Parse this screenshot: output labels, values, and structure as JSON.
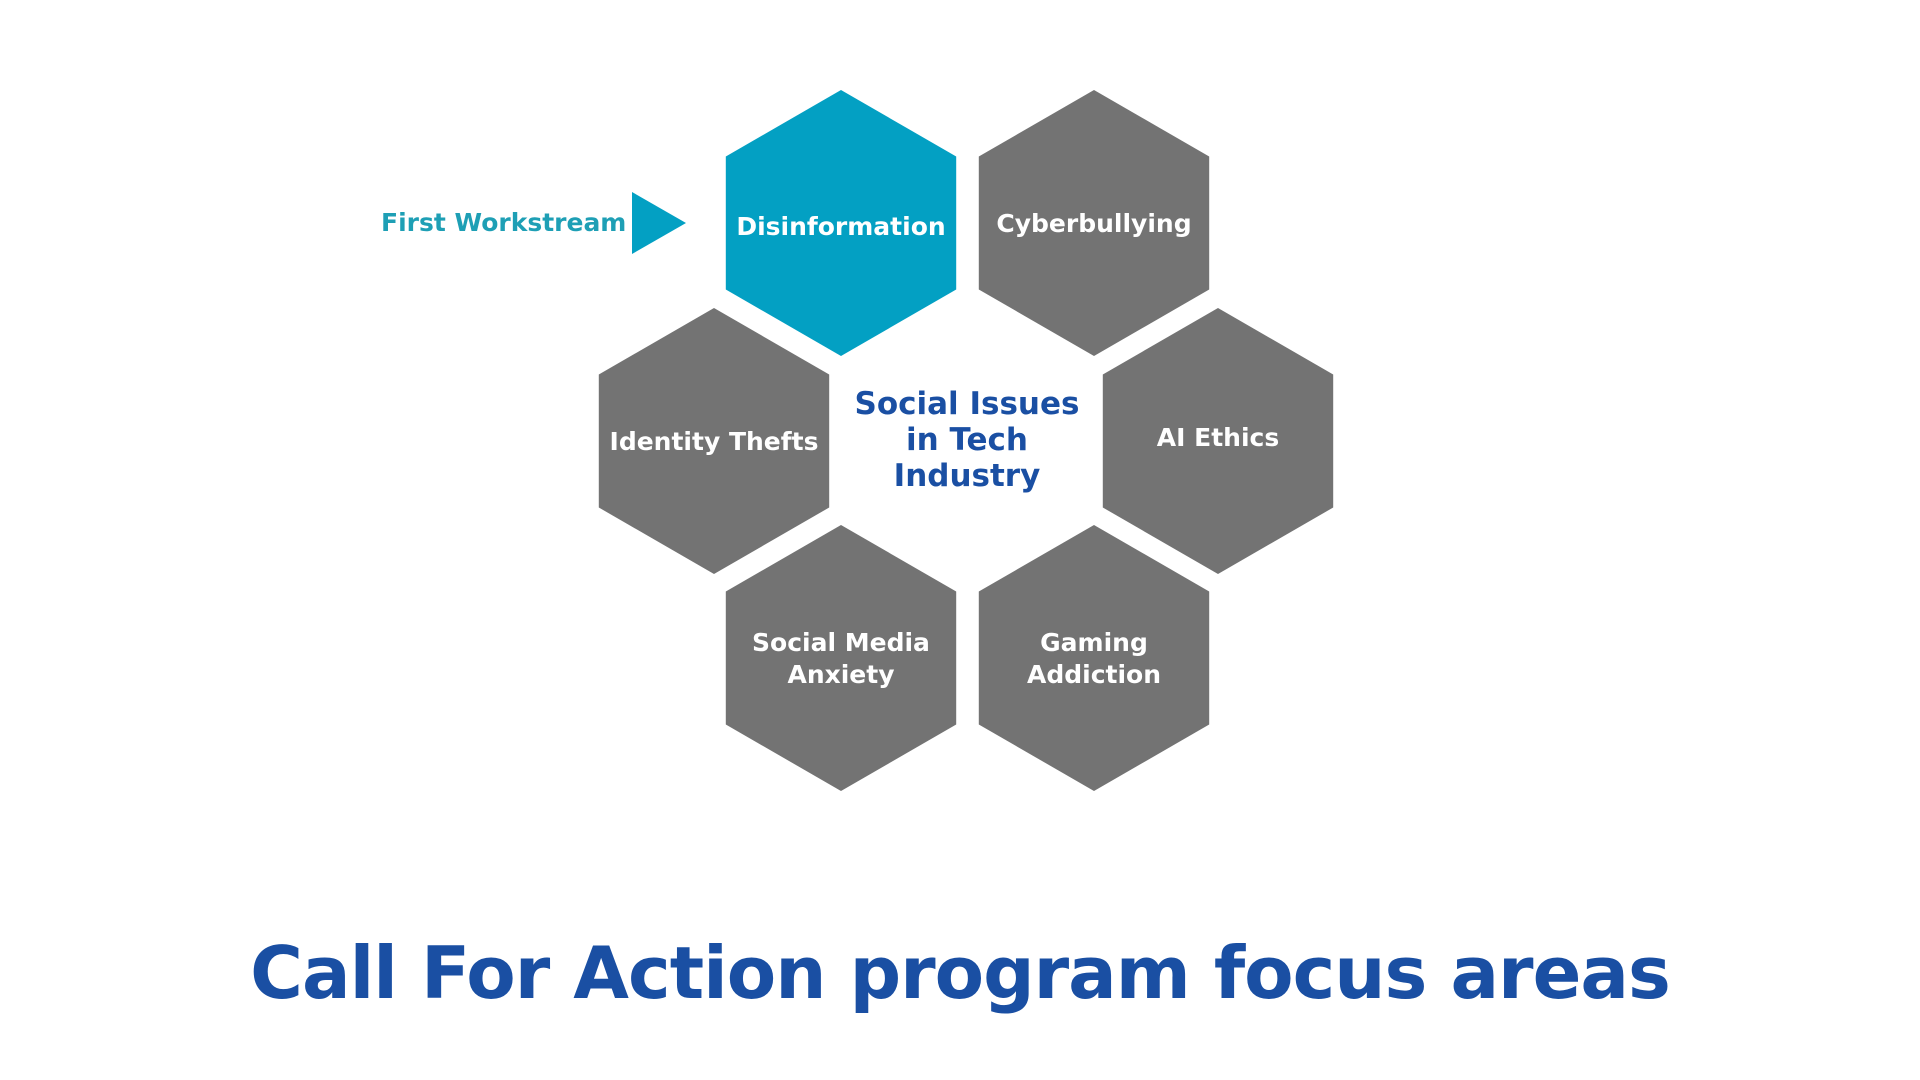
{
  "center_title": [
    "Social Issues",
    "in Tech",
    "Industry"
  ],
  "workstream_label": "First Workstream",
  "hexagons": [
    {
      "lines": [
        "Disinformation"
      ],
      "highlighted": true
    },
    {
      "lines": [
        "Cyberbullying"
      ],
      "highlighted": false
    },
    {
      "lines": [
        "Identity Thefts"
      ],
      "highlighted": false
    },
    {
      "lines": [
        "AI Ethics"
      ],
      "highlighted": false
    },
    {
      "lines": [
        "Social Media",
        "Anxiety"
      ],
      "highlighted": false
    },
    {
      "lines": [
        "Gaming",
        "Addiction"
      ],
      "highlighted": false
    }
  ],
  "colors": {
    "highlight": "#03a0c3",
    "hex_gray": "#737373",
    "title_blue": "#1a4fa3",
    "workstream_teal": "#1e9fb5",
    "arrow": "#03a0c3"
  },
  "page_title": "Call For Action program focus areas"
}
